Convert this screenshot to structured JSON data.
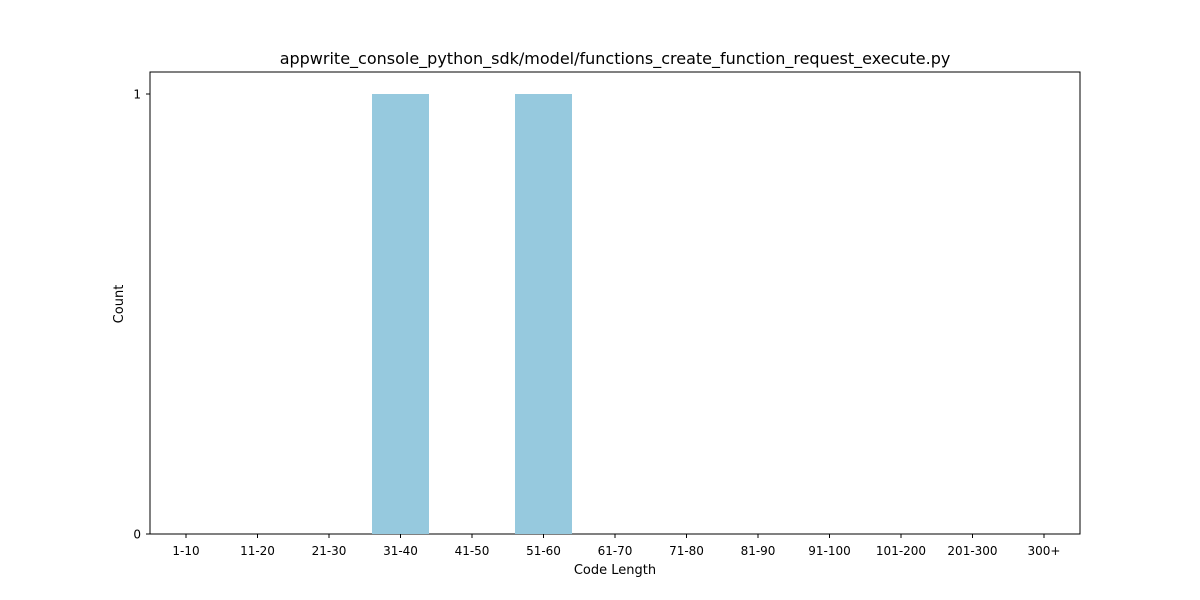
{
  "chart_data": {
    "type": "bar",
    "title": "appwrite_console_python_sdk/model/functions_create_function_request_execute.py",
    "xlabel": "Code Length",
    "ylabel": "Count",
    "categories": [
      "1-10",
      "11-20",
      "21-30",
      "31-40",
      "41-50",
      "51-60",
      "61-70",
      "71-80",
      "81-90",
      "91-100",
      "101-200",
      "201-300",
      "300+"
    ],
    "values": [
      0,
      0,
      0,
      1,
      0,
      1,
      0,
      0,
      0,
      0,
      0,
      0,
      0
    ],
    "ylim": [
      0,
      1
    ],
    "yticks": [
      0,
      1
    ],
    "grid": false,
    "legend": "none",
    "bar_color": "#96c9de",
    "axis_color": "#000000"
  }
}
